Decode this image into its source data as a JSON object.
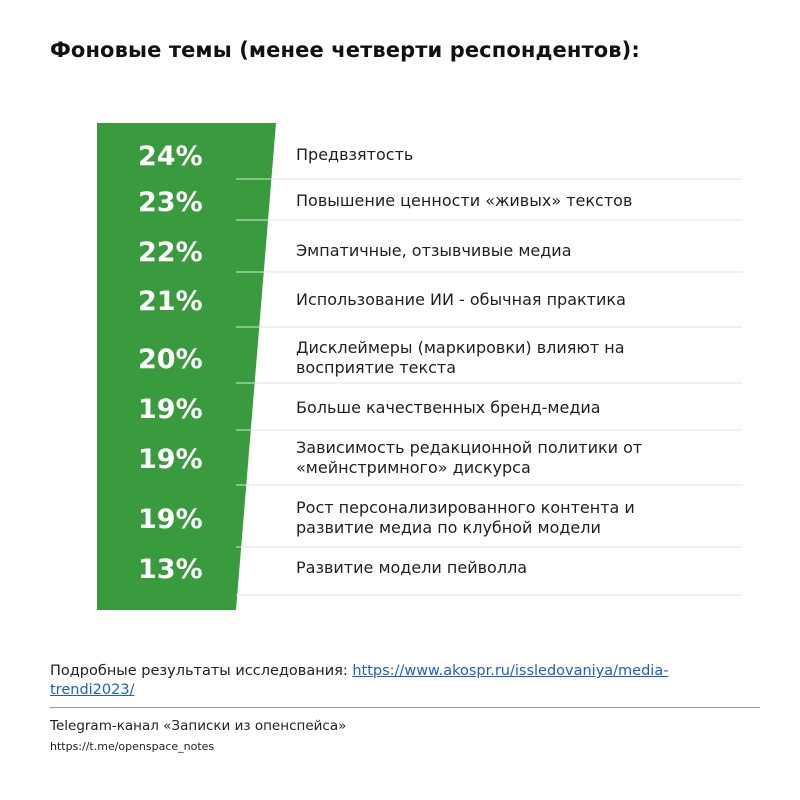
{
  "title": "Фоновые темы (менее четверти респондентов):",
  "chart_data": {
    "type": "bar",
    "orientation": "horizontal",
    "value_suffix": "%",
    "bar_color": "#3a9a3e",
    "categories": [
      [
        "Предвзятость"
      ],
      [
        "Повышение ценности «живых» текстов"
      ],
      [
        "Эмпатичные, отзывчивые медиа"
      ],
      [
        "Использование ИИ  - обычная практика"
      ],
      [
        "Дисклеймеры (маркировки) влияют на",
        "восприятие текста"
      ],
      [
        "Больше качественных бренд-медиа"
      ],
      [
        "Зависимость редакционной политики от",
        "«мейнстримного» дискурса"
      ],
      [
        "Рост персонализированного контента и",
        "развитие медиа по клубной модели"
      ],
      [
        "Развитие модели пейволла"
      ]
    ],
    "values": [
      24,
      23,
      22,
      21,
      20,
      19,
      19,
      19,
      13
    ]
  },
  "footer": {
    "source_label": "Подробные результаты исследования: ",
    "source_link": "https://www.akospr.ru/issledovaniya/media-trendi2023/",
    "channel": "Telegram-канал «Записки из опенспейса»",
    "channel_url": "https://t.me/openspace_notes"
  }
}
